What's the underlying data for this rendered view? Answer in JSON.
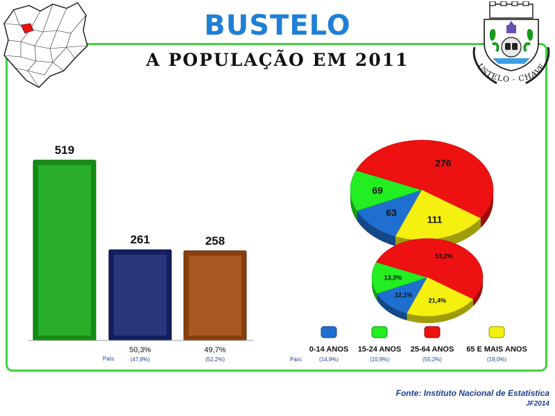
{
  "header": {
    "place": "BUSTELO",
    "subtitle": "A POPULAÇÃO EM 2011",
    "crest_text": "BUSTELO - CHAVES"
  },
  "footer": {
    "source": "Fonte: Instituto Nacional de Estatística",
    "author": "JF2014"
  },
  "colors": {
    "frame": "#3fcf3f",
    "title": "#1e7fd6",
    "total": "#16a516",
    "male": "#16256e",
    "female": "#a04a0e",
    "age_0_14": "#1e6fd0",
    "age_15_24": "#22ee22",
    "age_25_64": "#ee1111",
    "age_65": "#f5f010",
    "note_text": "#1a3f8f"
  },
  "chart_data": [
    {
      "type": "bar",
      "title": "",
      "values": [
        519,
        261,
        258
      ],
      "percent_labels": [
        "",
        "50,3%",
        "49,7%"
      ],
      "country_label": "País:",
      "country_labels": [
        "",
        "(47,8%)",
        "(52,2%)"
      ],
      "ylim": [
        0,
        519
      ]
    },
    {
      "type": "pie",
      "title": "",
      "categories": [
        "0-14 ANOS",
        "15-24 ANOS",
        "25-64 ANOS",
        "65 E MAIS ANOS"
      ],
      "values": [
        63,
        69,
        276,
        111
      ],
      "value_labels": [
        "63",
        "69",
        "276",
        "111"
      ]
    },
    {
      "type": "pie",
      "title": "",
      "categories": [
        "0-14 ANOS",
        "15-24 ANOS",
        "25-64 ANOS",
        "65 E MAIS ANOS"
      ],
      "values": [
        12.1,
        13.3,
        53.2,
        21.4
      ],
      "value_labels": [
        "12,1%",
        "13,3%",
        "53,2%",
        "21,4%"
      ],
      "country_label": "País:",
      "country_labels": [
        "(14,9%)",
        "(10,9%)",
        "(55,2%)",
        "(19,0%)"
      ]
    }
  ]
}
